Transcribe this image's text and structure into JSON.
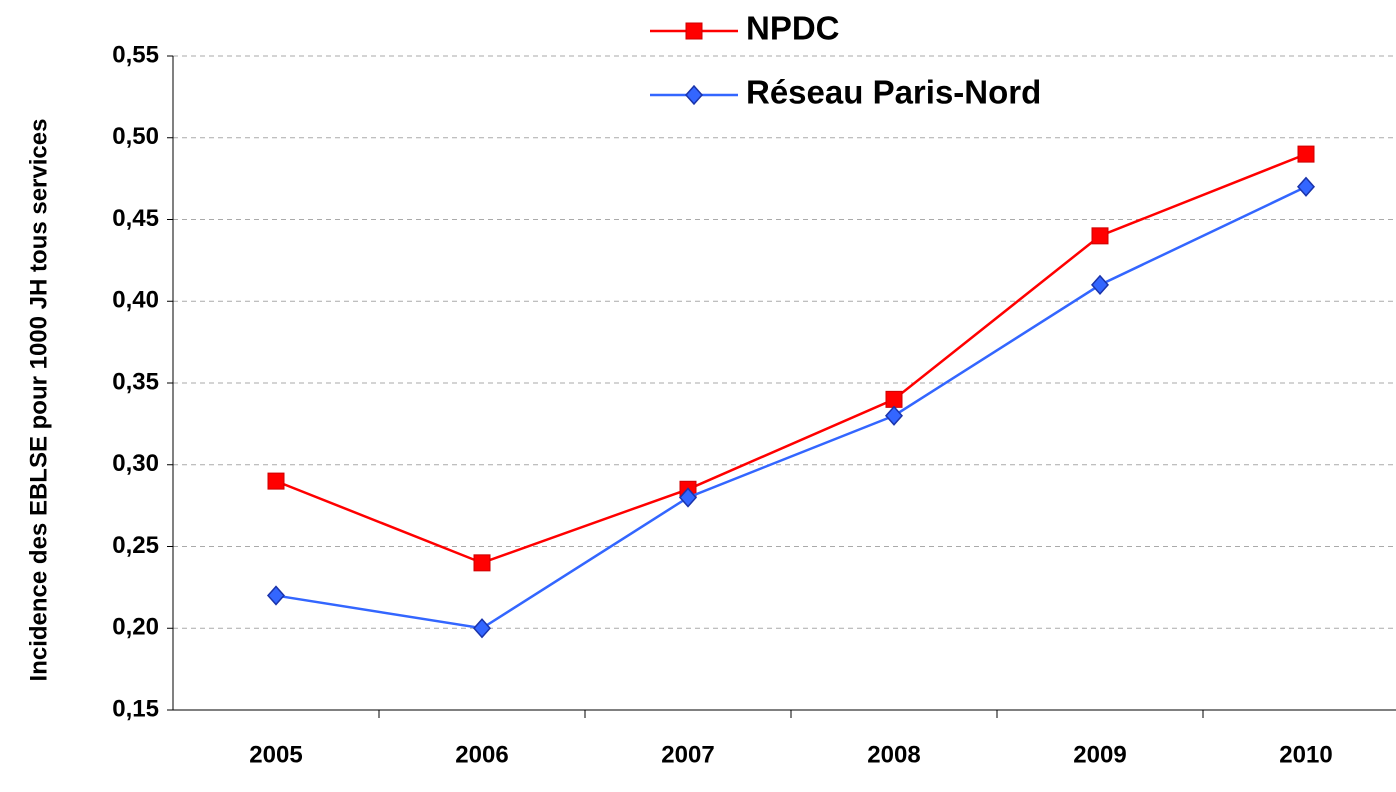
{
  "chart_data": {
    "type": "line",
    "y_label": "Incidence des EBLSE pour 1000 JH tous services",
    "categories": [
      "2005",
      "2006",
      "2007",
      "2008",
      "2009",
      "2010"
    ],
    "series": [
      {
        "name": "NPDC",
        "color": "#ff0000",
        "marker": "square",
        "values": [
          0.29,
          0.24,
          0.285,
          0.34,
          0.44,
          0.49
        ]
      },
      {
        "name": "Réseau Paris-Nord",
        "color": "#3366ff",
        "marker": "diamond",
        "values": [
          0.22,
          0.2,
          0.28,
          0.33,
          0.41,
          0.47
        ]
      }
    ],
    "ylim": [
      0.15,
      0.55
    ],
    "yticks": [
      {
        "value": 0.15,
        "label": "0,15"
      },
      {
        "value": 0.2,
        "label": "0,20"
      },
      {
        "value": 0.25,
        "label": "0,25"
      },
      {
        "value": 0.3,
        "label": "0,30"
      },
      {
        "value": 0.35,
        "label": "0,35"
      },
      {
        "value": 0.4,
        "label": "0,40"
      },
      {
        "value": 0.45,
        "label": "0,45"
      },
      {
        "value": 0.5,
        "label": "0,50"
      },
      {
        "value": 0.55,
        "label": "0,55"
      }
    ],
    "grid": true,
    "legend": "top"
  }
}
